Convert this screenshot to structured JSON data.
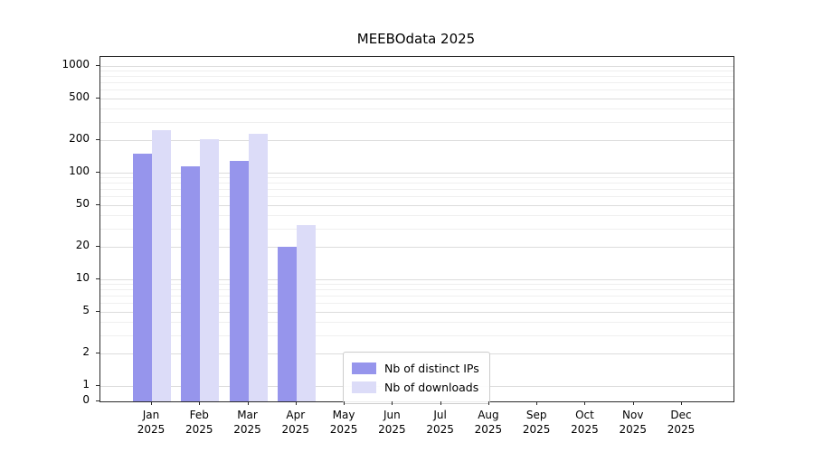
{
  "title": "MEEBOdata 2025",
  "chart_data": {
    "type": "bar",
    "scale": "log",
    "title": "MEEBOdata 2025",
    "categories": [
      "Jan",
      "Feb",
      "Mar",
      "Apr",
      "May",
      "Jun",
      "Jul",
      "Aug",
      "Sep",
      "Oct",
      "Nov",
      "Dec"
    ],
    "category_year": "2025",
    "series": [
      {
        "name": "Nb of distinct IPs",
        "color": "#9695ec",
        "values": [
          150,
          115,
          130,
          20,
          0,
          0,
          0,
          0,
          0,
          0,
          0,
          0
        ]
      },
      {
        "name": "Nb of downloads",
        "color": "#dcdcf8",
        "values": [
          250,
          205,
          230,
          32,
          0,
          0,
          0,
          0,
          0,
          0,
          0,
          0
        ]
      }
    ],
    "yticks": [
      0,
      1,
      2,
      5,
      10,
      20,
      50,
      100,
      200,
      500,
      1000
    ],
    "ylim": [
      0,
      1400
    ],
    "xlabel": "",
    "ylabel": "",
    "grid": true,
    "legend_position": "lower center-left"
  }
}
